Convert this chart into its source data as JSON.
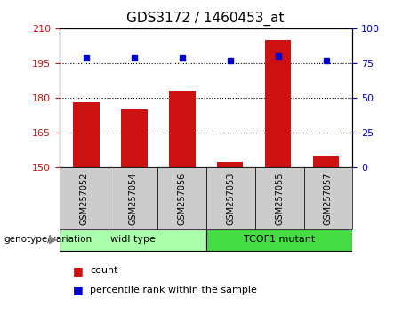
{
  "title": "GDS3172 / 1460453_at",
  "samples": [
    "GSM257052",
    "GSM257054",
    "GSM257056",
    "GSM257053",
    "GSM257055",
    "GSM257057"
  ],
  "bar_values": [
    178,
    175,
    183,
    152,
    205,
    155
  ],
  "percentile_values": [
    79,
    79,
    79,
    77,
    80,
    77
  ],
  "bar_color": "#cc1111",
  "dot_color": "#0000cc",
  "ylim_left": [
    150,
    210
  ],
  "ylim_right": [
    0,
    100
  ],
  "yticks_left": [
    150,
    165,
    180,
    195,
    210
  ],
  "yticks_right": [
    0,
    25,
    50,
    75,
    100
  ],
  "baseline": 150,
  "groups": [
    {
      "label": "widl type",
      "indices": [
        0,
        1,
        2
      ],
      "color": "#aaffaa"
    },
    {
      "label": "TCOF1 mutant",
      "indices": [
        3,
        4,
        5
      ],
      "color": "#44dd44"
    }
  ],
  "group_label": "genotype/variation",
  "legend_count_label": "count",
  "legend_percentile_label": "percentile rank within the sample",
  "tick_label_color_left": "#cc1111",
  "tick_label_color_right": "#0000cc",
  "tick_bg_color": "#cccccc",
  "bar_width": 0.55,
  "figsize": [
    4.61,
    3.54
  ],
  "dpi": 100
}
